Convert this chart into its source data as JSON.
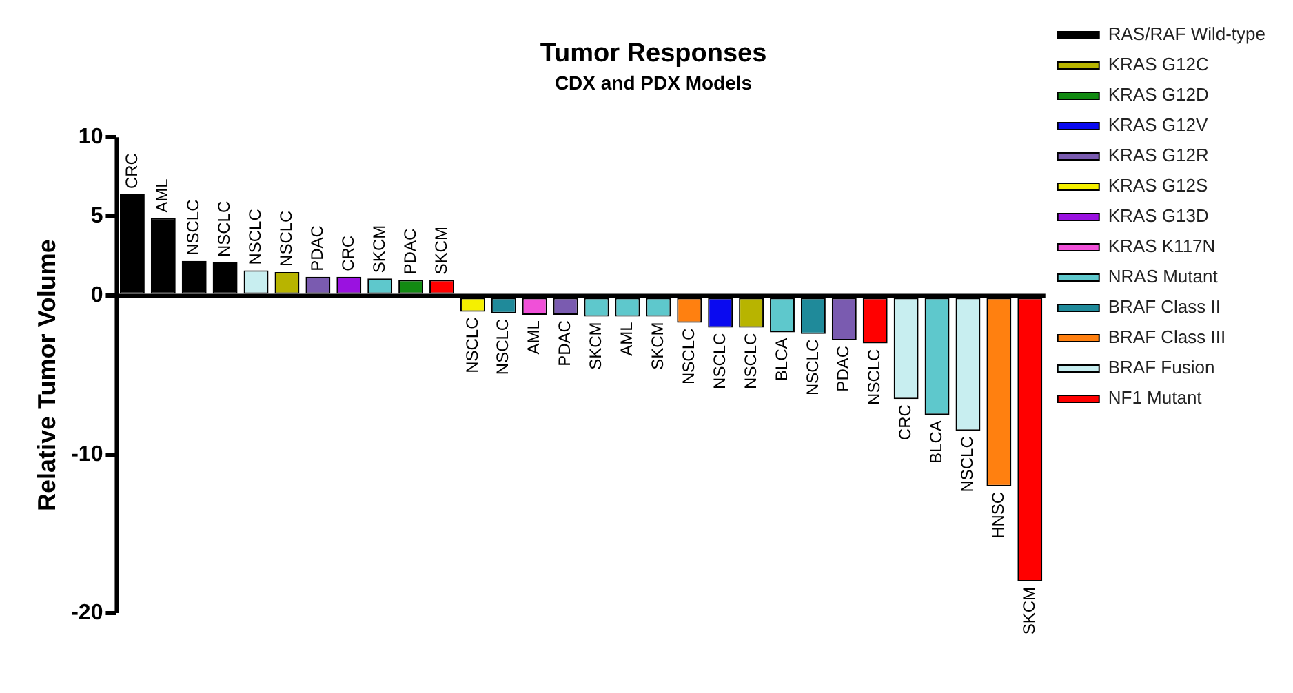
{
  "chart_data": {
    "type": "bar",
    "title": "Tumor Responses",
    "subtitle": "CDX and PDX Models",
    "ylabel": "Relative Tumor Volume",
    "categories": [
      "CRC",
      "AML",
      "NSCLC",
      "NSCLC",
      "NSCLC",
      "NSCLC",
      "PDAC",
      "CRC",
      "SKCM",
      "PDAC",
      "SKCM",
      "NSCLC",
      "NSCLC",
      "AML",
      "PDAC",
      "SKCM",
      "AML",
      "SKCM",
      "NSCLC",
      "NSCLC",
      "NSCLC",
      "BLCA",
      "NSCLC",
      "PDAC",
      "NSCLC",
      "CRC",
      "BLCA",
      "NSCLC",
      "HNSC",
      "SKCM"
    ],
    "stacked": true,
    "ylim": [
      -20,
      10
    ],
    "yticks": [
      -20,
      -10,
      0,
      5,
      10
    ],
    "tick_labels": "y",
    "legend": "right",
    "series": [
      {
        "name": "RAS/RAF Wild-type",
        "color": "#000000",
        "values": [
          6.4,
          4.9,
          2.2,
          2.1,
          null,
          null,
          null,
          null,
          null,
          null,
          null,
          null,
          null,
          null,
          null,
          null,
          null,
          null,
          null,
          null,
          null,
          null,
          null,
          null,
          null,
          null,
          null,
          null,
          null,
          null
        ]
      },
      {
        "name": "KRAS G12C",
        "color": "#b8b400",
        "values": [
          null,
          null,
          null,
          null,
          null,
          1.5,
          null,
          null,
          null,
          null,
          null,
          null,
          null,
          null,
          null,
          null,
          null,
          null,
          null,
          null,
          -2.0,
          null,
          null,
          null,
          null,
          null,
          null,
          null,
          null,
          null
        ]
      },
      {
        "name": "KRAS G12D",
        "color": "#128a12",
        "values": [
          null,
          null,
          null,
          null,
          null,
          null,
          null,
          null,
          null,
          1.0,
          null,
          null,
          null,
          null,
          null,
          null,
          null,
          null,
          null,
          null,
          null,
          null,
          null,
          null,
          null,
          null,
          null,
          null,
          null,
          null
        ]
      },
      {
        "name": "KRAS G12V",
        "color": "#0a0af0",
        "values": [
          null,
          null,
          null,
          null,
          null,
          null,
          null,
          null,
          null,
          null,
          null,
          null,
          null,
          null,
          null,
          null,
          null,
          null,
          null,
          -2.0,
          null,
          null,
          null,
          null,
          null,
          null,
          null,
          null,
          null,
          null
        ]
      },
      {
        "name": "KRAS G12R",
        "color": "#7a5bb0",
        "values": [
          null,
          null,
          null,
          null,
          null,
          null,
          1.2,
          null,
          null,
          null,
          null,
          null,
          null,
          null,
          -1.2,
          null,
          null,
          null,
          null,
          null,
          null,
          null,
          null,
          -2.8,
          null,
          null,
          null,
          null,
          null,
          null
        ]
      },
      {
        "name": "KRAS G12S",
        "color": "#f5f000",
        "values": [
          null,
          null,
          null,
          null,
          null,
          null,
          null,
          null,
          null,
          null,
          null,
          -1.0,
          null,
          null,
          null,
          null,
          null,
          null,
          null,
          null,
          null,
          null,
          null,
          null,
          null,
          null,
          null,
          null,
          null,
          null
        ]
      },
      {
        "name": "KRAS G13D",
        "color": "#9a12e0",
        "values": [
          null,
          null,
          null,
          null,
          null,
          null,
          null,
          1.2,
          null,
          null,
          null,
          null,
          null,
          null,
          null,
          null,
          null,
          null,
          null,
          null,
          null,
          null,
          null,
          null,
          null,
          null,
          null,
          null,
          null,
          null
        ]
      },
      {
        "name": "KRAS K117N",
        "color": "#f050d8",
        "values": [
          null,
          null,
          null,
          null,
          null,
          null,
          null,
          null,
          null,
          null,
          null,
          null,
          null,
          -1.2,
          null,
          null,
          null,
          null,
          null,
          null,
          null,
          null,
          null,
          null,
          null,
          null,
          null,
          null,
          null,
          null
        ]
      },
      {
        "name": "NRAS Mutant",
        "color": "#5ec8cc",
        "values": [
          null,
          null,
          null,
          null,
          null,
          null,
          null,
          null,
          1.1,
          null,
          null,
          null,
          null,
          null,
          null,
          -1.3,
          -1.3,
          -1.3,
          null,
          null,
          null,
          -2.3,
          null,
          null,
          null,
          null,
          -7.5,
          null,
          null,
          null
        ]
      },
      {
        "name": "BRAF Class II",
        "color": "#1f8a9a",
        "values": [
          null,
          null,
          null,
          null,
          null,
          null,
          null,
          null,
          null,
          null,
          null,
          null,
          -1.1,
          null,
          null,
          null,
          null,
          null,
          null,
          null,
          null,
          null,
          -2.4,
          null,
          null,
          null,
          null,
          null,
          null,
          null
        ]
      },
      {
        "name": "BRAF Class III",
        "color": "#ff8010",
        "values": [
          null,
          null,
          null,
          null,
          null,
          null,
          null,
          null,
          null,
          null,
          null,
          null,
          null,
          null,
          null,
          null,
          null,
          null,
          -1.7,
          null,
          null,
          null,
          null,
          null,
          null,
          null,
          null,
          null,
          -12,
          null
        ]
      },
      {
        "name": "BRAF Fusion",
        "color": "#c8eef0",
        "values": [
          null,
          null,
          null,
          null,
          1.6,
          null,
          null,
          null,
          null,
          null,
          null,
          null,
          null,
          null,
          null,
          null,
          null,
          null,
          null,
          null,
          null,
          null,
          null,
          null,
          null,
          -6.5,
          null,
          -8.5,
          null,
          null
        ]
      },
      {
        "name": "NF1 Mutant",
        "color": "#ff0000",
        "values": [
          null,
          null,
          null,
          null,
          null,
          null,
          null,
          null,
          null,
          null,
          1.0,
          null,
          null,
          null,
          null,
          null,
          null,
          null,
          null,
          null,
          null,
          null,
          null,
          null,
          -3.0,
          null,
          null,
          null,
          null,
          -18
        ]
      }
    ]
  }
}
